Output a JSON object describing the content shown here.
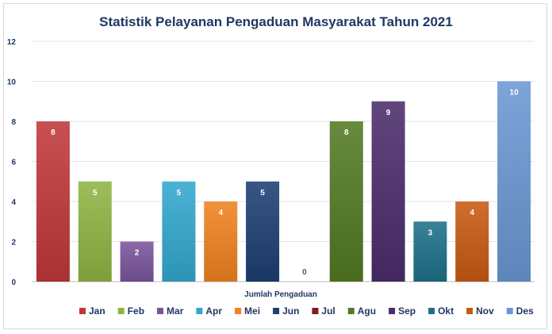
{
  "chart_data": {
    "type": "bar",
    "title": "Statistik Pelayanan Pengaduan Masyarakat Tahun 2021",
    "xlabel": "Jumlah Pengaduan",
    "ylabel": "",
    "ylim": [
      0,
      12
    ],
    "yticks": [
      "0",
      "2",
      "4",
      "6",
      "8",
      "10",
      "12"
    ],
    "grid": true,
    "legend_position": "bottom",
    "series": [
      {
        "name": "Jan",
        "value": 8,
        "color": "#c0383a"
      },
      {
        "name": "Feb",
        "value": 5,
        "color": "#8fb443"
      },
      {
        "name": "Mar",
        "value": 2,
        "color": "#7b559d"
      },
      {
        "name": "Apr",
        "value": 5,
        "color": "#33a8cf"
      },
      {
        "name": "Mei",
        "value": 4,
        "color": "#f0821f"
      },
      {
        "name": "Jun",
        "value": 5,
        "color": "#1d3f73"
      },
      {
        "name": "Jul",
        "value": 0,
        "color": "#7a1e1e"
      },
      {
        "name": "Agu",
        "value": 8,
        "color": "#537a23"
      },
      {
        "name": "Sep",
        "value": 9,
        "color": "#4b2d6b"
      },
      {
        "name": "Okt",
        "value": 3,
        "color": "#1e7089"
      },
      {
        "name": "Nov",
        "value": 4,
        "color": "#c85a12"
      },
      {
        "name": "Des",
        "value": 10,
        "color": "#6a98d3"
      }
    ]
  }
}
